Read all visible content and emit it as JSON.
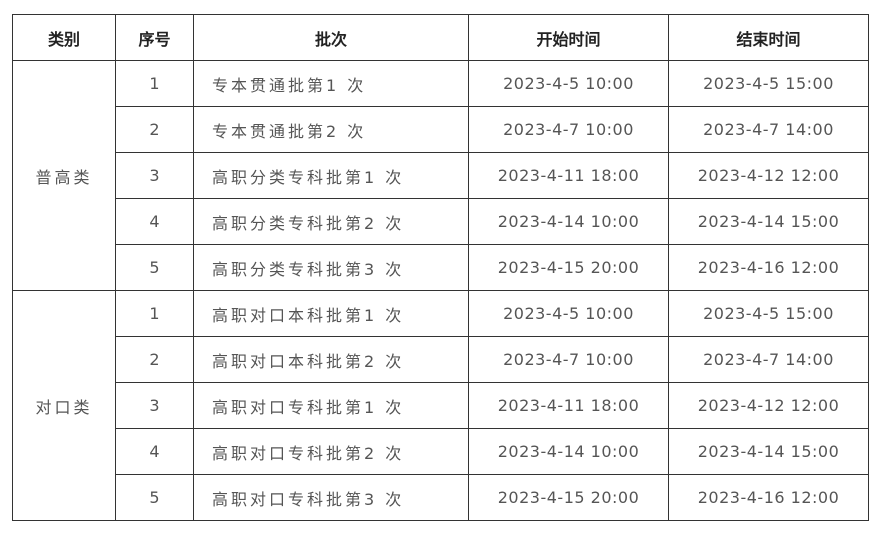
{
  "headers": [
    "类别",
    "序号",
    "批次",
    "开始时间",
    "结束时间"
  ],
  "groups": [
    {
      "category": "普高类",
      "rows": [
        {
          "no": "1",
          "batch": "专本贯通批第1 次",
          "start": "2023-4-5 10:00",
          "end": "2023-4-5 15:00"
        },
        {
          "no": "2",
          "batch": "专本贯通批第2 次",
          "start": "2023-4-7 10:00",
          "end": "2023-4-7 14:00"
        },
        {
          "no": "3",
          "batch": "高职分类专科批第1 次",
          "start": "2023-4-11 18:00",
          "end": "2023-4-12 12:00"
        },
        {
          "no": "4",
          "batch": "高职分类专科批第2 次",
          "start": "2023-4-14 10:00",
          "end": "2023-4-14 15:00"
        },
        {
          "no": "5",
          "batch": "高职分类专科批第3 次",
          "start": "2023-4-15 20:00",
          "end": "2023-4-16 12:00"
        }
      ]
    },
    {
      "category": "对口类",
      "rows": [
        {
          "no": "1",
          "batch": "高职对口本科批第1 次",
          "start": "2023-4-5 10:00",
          "end": "2023-4-5 15:00"
        },
        {
          "no": "2",
          "batch": "高职对口本科批第2 次",
          "start": "2023-4-7 10:00",
          "end": "2023-4-7 14:00"
        },
        {
          "no": "3",
          "batch": "高职对口专科批第1 次",
          "start": "2023-4-11 18:00",
          "end": "2023-4-12 12:00"
        },
        {
          "no": "4",
          "batch": "高职对口专科批第2 次",
          "start": "2023-4-14 10:00",
          "end": "2023-4-14 15:00"
        },
        {
          "no": "5",
          "batch": "高职对口专科批第3 次",
          "start": "2023-4-15 20:00",
          "end": "2023-4-16 12:00"
        }
      ]
    }
  ]
}
